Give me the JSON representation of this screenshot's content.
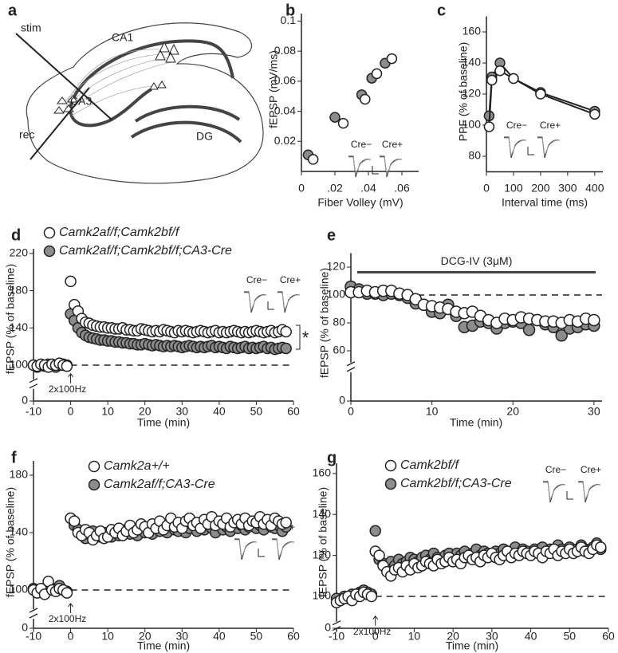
{
  "diagram": {
    "panel_label": "a",
    "labels": [
      "stim",
      "CA1",
      "CA3",
      "rec",
      "DG"
    ]
  },
  "chart_data": [
    {
      "type": "scatter",
      "panel_label": "b",
      "xlabel": "Fiber Volley (mV)",
      "ylabel": "fEPSP (mV/ms)",
      "xlim": [
        0,
        0.07
      ],
      "ylim": [
        0,
        0.105
      ],
      "xticks": [
        0,
        {
          "value": 0.02,
          "label": ".02"
        },
        {
          "value": 0.04,
          "label": ".04"
        },
        {
          "value": 0.06,
          "label": ".06"
        }
      ],
      "yticks": [
        0.02,
        0.04,
        0.06,
        0.08,
        0.1
      ],
      "inset_labels": [
        "Cre−",
        "Cre+"
      ],
      "series": [
        {
          "color": "#ffffff",
          "x": [
            0.007,
            0.025,
            0.038,
            0.045,
            0.054
          ],
          "values": [
            0.008,
            0.032,
            0.048,
            0.065,
            0.075
          ]
        },
        {
          "color": "#8c8c8c",
          "x": [
            0.004,
            0.02,
            0.036,
            0.042,
            0.05
          ],
          "values": [
            0.011,
            0.036,
            0.051,
            0.062,
            0.072
          ]
        }
      ]
    },
    {
      "type": "line",
      "panel_label": "c",
      "xlabel": "Interval time (ms)",
      "ylabel": "PPF (% of baseline)",
      "xlim": [
        0,
        430
      ],
      "ylim": [
        70,
        170
      ],
      "xticks": [
        0,
        100,
        200,
        300,
        400
      ],
      "yticks": [
        80,
        100,
        120,
        140,
        160
      ],
      "inset_labels": [
        "Cre−",
        "Cre+"
      ],
      "x": [
        10,
        20,
        50,
        100,
        200,
        400
      ],
      "series": [
        {
          "color": "#ffffff",
          "values": [
            99,
            129,
            135,
            130,
            120,
            107
          ]
        },
        {
          "color": "#8c8c8c",
          "values": [
            106,
            131,
            140,
            130,
            121,
            109
          ]
        }
      ]
    },
    {
      "type": "scatter",
      "panel_label": "d",
      "xlabel": "Time (min)",
      "ylabel": "fEPSP (% of baseline)",
      "xlim": [
        -10,
        60
      ],
      "ylim": [
        90,
        225
      ],
      "xticks": [
        -10,
        0,
        10,
        20,
        30,
        40,
        50,
        60
      ],
      "yticks": [
        100,
        140,
        180,
        220
      ],
      "ybreak": 0,
      "reference_line": 100,
      "stim_label": "2x100Hz",
      "significance": "*",
      "inset_labels": [
        "Cre−",
        "Cre+"
      ],
      "x": [
        -10,
        -9,
        -8,
        -7,
        -6,
        -5,
        -4,
        -3,
        -2,
        -1,
        0,
        1,
        2,
        3,
        4,
        5,
        6,
        7,
        8,
        9,
        10,
        11,
        12,
        13,
        14,
        15,
        16,
        17,
        18,
        19,
        20,
        21,
        22,
        23,
        24,
        25,
        26,
        27,
        28,
        29,
        30,
        31,
        32,
        33,
        34,
        35,
        36,
        37,
        38,
        39,
        40,
        41,
        42,
        43,
        44,
        45,
        46,
        47,
        48,
        49,
        50,
        51,
        52,
        53,
        54,
        55,
        56,
        57,
        58
      ],
      "series": [
        {
          "name": "Camk2af/f;Camk2bf/f",
          "color": "#ffffff",
          "values": [
            100,
            99,
            101,
            100,
            98,
            101,
            100,
            102,
            100,
            99,
            190,
            165,
            158,
            150,
            146,
            145,
            143,
            142,
            141,
            141,
            140,
            140,
            139,
            139,
            140,
            138,
            138,
            137,
            137,
            139,
            138,
            137,
            136,
            137,
            136,
            138,
            137,
            136,
            135,
            137,
            136,
            137,
            136,
            135,
            136,
            137,
            136,
            135,
            136,
            137,
            135,
            136,
            135,
            136,
            137,
            136,
            135,
            136,
            135,
            136,
            137,
            136,
            135,
            136,
            137,
            135,
            136,
            138,
            136
          ]
        },
        {
          "name": "Camk2af/f;Camk2bf/f;CA3-Cre",
          "color": "#8c8c8c",
          "values": [
            100,
            98,
            100,
            99,
            101,
            100,
            98,
            100,
            101,
            100,
            155,
            148,
            140,
            135,
            132,
            130,
            129,
            128,
            127,
            127,
            126,
            126,
            125,
            125,
            124,
            124,
            123,
            123,
            122,
            122,
            123,
            122,
            121,
            122,
            121,
            120,
            121,
            120,
            121,
            120,
            119,
            120,
            121,
            120,
            119,
            120,
            119,
            120,
            121,
            119,
            120,
            119,
            118,
            120,
            119,
            118,
            119,
            120,
            118,
            119,
            118,
            119,
            120,
            118,
            119,
            117,
            118,
            119,
            118
          ]
        }
      ]
    },
    {
      "type": "scatter",
      "panel_label": "e",
      "xlabel": "Time (min)",
      "ylabel": "fEPSP (% of baseline)",
      "xlim": [
        0,
        31
      ],
      "ylim": [
        55,
        130
      ],
      "xticks": [
        0,
        10,
        20,
        30
      ],
      "yticks": [
        60,
        80,
        100,
        120
      ],
      "ybreak": 0,
      "reference_line": 100,
      "drug_label": "DCG-IV (3μM)",
      "x": [
        0,
        1,
        2,
        3,
        4,
        5,
        6,
        7,
        8,
        9,
        10,
        11,
        12,
        13,
        14,
        15,
        16,
        17,
        18,
        19,
        20,
        21,
        22,
        23,
        24,
        25,
        26,
        27,
        28,
        29,
        30
      ],
      "series": [
        {
          "color": "#ffffff",
          "values": [
            102,
            102,
            103,
            102,
            103,
            103,
            101,
            100,
            97,
            93,
            92,
            91,
            90,
            88,
            87,
            88,
            85,
            82,
            80,
            83,
            82,
            84,
            83,
            82,
            81,
            81,
            80,
            82,
            81,
            83,
            82
          ]
        },
        {
          "color": "#8c8c8c",
          "values": [
            106,
            104,
            101,
            101,
            100,
            101,
            100,
            98,
            94,
            93,
            88,
            87,
            93,
            85,
            77,
            78,
            81,
            80,
            76,
            80,
            81,
            80,
            75,
            82,
            79,
            77,
            71,
            76,
            77,
            79,
            78
          ]
        }
      ]
    },
    {
      "type": "scatter",
      "panel_label": "f",
      "xlabel": "Time (min)",
      "ylabel": "fEPSP (% of baseline)",
      "xlim": [
        -10,
        60
      ],
      "ylim": [
        90,
        190
      ],
      "xticks": [
        -10,
        0,
        10,
        20,
        30,
        40,
        50,
        60
      ],
      "yticks": [
        100,
        140,
        180
      ],
      "ybreak": 0,
      "reference_line": 100,
      "stim_label": "2x100Hz",
      "inset_labels": [
        "Cre−",
        "Cre+"
      ],
      "x": [
        -10,
        -9,
        -8,
        -7,
        -6,
        -5,
        -4,
        -3,
        -2,
        -1,
        0,
        1,
        2,
        3,
        4,
        5,
        6,
        7,
        8,
        9,
        10,
        11,
        12,
        13,
        14,
        15,
        16,
        17,
        18,
        19,
        20,
        21,
        22,
        23,
        24,
        25,
        26,
        27,
        28,
        29,
        30,
        31,
        32,
        33,
        34,
        35,
        36,
        37,
        38,
        39,
        40,
        41,
        42,
        43,
        44,
        45,
        46,
        47,
        48,
        49,
        50,
        51,
        52,
        53,
        54,
        55,
        56,
        57,
        58
      ],
      "series": [
        {
          "name": "Camk2a+/+",
          "color": "#ffffff",
          "values": [
            100,
            98,
            101,
            97,
            106,
            100,
            99,
            101,
            100,
            98,
            150,
            148,
            140,
            138,
            142,
            140,
            135,
            138,
            141,
            136,
            137,
            142,
            140,
            143,
            138,
            141,
            145,
            140,
            142,
            146,
            144,
            140,
            146,
            143,
            148,
            142,
            145,
            150,
            144,
            147,
            143,
            148,
            150,
            145,
            147,
            143,
            149,
            146,
            151,
            145,
            148,
            146,
            150,
            144,
            147,
            149,
            146,
            150,
            145,
            148,
            147,
            151,
            146,
            149,
            145,
            150,
            148,
            146,
            147
          ]
        },
        {
          "name": "Camk2af/f;CA3-Cre",
          "color": "#8c8c8c",
          "values": [
            101,
            100,
            99,
            100,
            102,
            100,
            101,
            103,
            100,
            99,
            150,
            145,
            142,
            140,
            136,
            139,
            141,
            138,
            137,
            140,
            139,
            137,
            141,
            138,
            140,
            142,
            139,
            141,
            138,
            143,
            140,
            142,
            139,
            144,
            141,
            143,
            140,
            145,
            142,
            141,
            144,
            140,
            143,
            145,
            141,
            144,
            142,
            146,
            143,
            140,
            145,
            142,
            144,
            141,
            146,
            143,
            145,
            142,
            144,
            147,
            143,
            145,
            142,
            146,
            144,
            143,
            145,
            141,
            144
          ]
        }
      ]
    },
    {
      "type": "scatter",
      "panel_label": "g",
      "xlabel": "Time (min)",
      "ylabel": "fEPSP (% of baseline)",
      "xlim": [
        -10,
        60
      ],
      "ylim": [
        90,
        165
      ],
      "xticks": [
        -10,
        0,
        10,
        20,
        30,
        40,
        50,
        60
      ],
      "yticks": [
        100,
        120,
        140,
        160
      ],
      "ybreak": 0,
      "reference_line": 100,
      "stim_label": "2x100Hz",
      "inset_labels": [
        "Cre−",
        "Cre+"
      ],
      "x": [
        -10,
        -9,
        -8,
        -7,
        -6,
        -5,
        -4,
        -3,
        -2,
        -1,
        0,
        1,
        2,
        3,
        4,
        5,
        6,
        7,
        8,
        9,
        10,
        11,
        12,
        13,
        14,
        15,
        16,
        17,
        18,
        19,
        20,
        21,
        22,
        23,
        24,
        25,
        26,
        27,
        28,
        29,
        30,
        31,
        32,
        33,
        34,
        35,
        36,
        37,
        38,
        39,
        40,
        41,
        42,
        43,
        44,
        45,
        46,
        47,
        48,
        49,
        50,
        51,
        52,
        53,
        54,
        55,
        56,
        57,
        58
      ],
      "series": [
        {
          "name": "Camk2bf/f",
          "color": "#ffffff",
          "values": [
            97,
            98,
            99,
            100,
            98,
            101,
            100,
            102,
            101,
            100,
            122,
            120,
            115,
            112,
            110,
            113,
            114,
            112,
            115,
            113,
            116,
            114,
            115,
            117,
            116,
            115,
            118,
            116,
            117,
            119,
            117,
            118,
            116,
            119,
            120,
            118,
            119,
            117,
            120,
            119,
            121,
            119,
            118,
            120,
            122,
            119,
            121,
            120,
            122,
            121,
            120,
            122,
            121,
            119,
            122,
            121,
            123,
            120,
            122,
            121,
            123,
            121,
            122,
            124,
            122,
            121,
            123,
            125,
            124
          ]
        },
        {
          "name": "Camk2bf/f;CA3-Cre",
          "color": "#8c8c8c",
          "values": [
            99,
            98,
            100,
            99,
            101,
            100,
            102,
            103,
            102,
            101,
            132,
            118,
            116,
            114,
            117,
            115,
            118,
            116,
            117,
            119,
            118,
            117,
            119,
            120,
            118,
            121,
            119,
            118,
            120,
            121,
            119,
            121,
            120,
            122,
            119,
            121,
            123,
            120,
            122,
            121,
            120,
            122,
            121,
            123,
            122,
            120,
            124,
            121,
            123,
            122,
            121,
            123,
            122,
            124,
            121,
            123,
            122,
            125,
            123,
            122,
            124,
            122,
            123,
            125,
            123,
            122,
            124,
            126,
            123
          ]
        }
      ]
    }
  ]
}
